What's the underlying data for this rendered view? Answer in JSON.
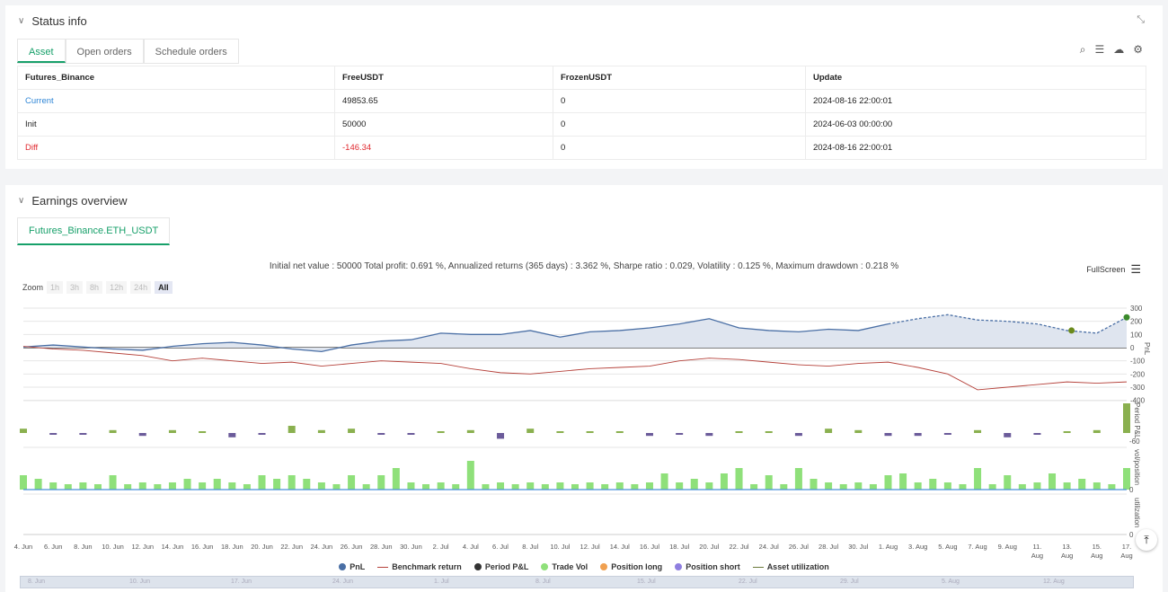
{
  "status": {
    "title": "Status info",
    "tabs": [
      "Asset",
      "Open orders",
      "Schedule orders"
    ],
    "table": {
      "headers": [
        "Futures_Binance",
        "FreeUSDT",
        "FrozenUSDT",
        "Update"
      ],
      "rows": [
        [
          "Current",
          "49853.65",
          "0",
          "2024-08-16 22:00:01"
        ],
        [
          "Init",
          "50000",
          "0",
          "2024-06-03 00:00:00"
        ],
        [
          "Diff",
          "-146.34",
          "0",
          "2024-08-16 22:00:01"
        ]
      ]
    }
  },
  "earnings": {
    "title": "Earnings overview",
    "tab": "Futures_Binance.ETH_USDT",
    "summary": "Initial net value : 50000 Total profit: 0.691 %, Annualized returns (365 days) : 3.362 %, Sharpe ratio : 0.029, Volatility : 0.125 %, Maximum drawdown : 0.218 %",
    "fullscreen": "FullScreen",
    "zoom_label": "Zoom",
    "zoom_options": [
      "1h",
      "3h",
      "8h",
      "12h",
      "24h",
      "All"
    ],
    "legend": [
      "PnL",
      "Benchmark return",
      "Period P&L",
      "Trade Vol",
      "Position long",
      "Position short",
      "Asset utilization"
    ],
    "navigator_labels": [
      "8. Jun",
      "10. Jun",
      "17. Jun",
      "24. Jun",
      "1. Jul",
      "8. Jul",
      "15. Jul",
      "22. Jul",
      "29. Jul",
      "5. Aug",
      "12. Aug"
    ]
  },
  "colors": {
    "pnl": "#4a6fa5",
    "benchmark": "#b5413a",
    "period_pos": "#8ab04f",
    "period_neg": "#6b5b9a",
    "vol": "#8fe07a",
    "accent": "#17a06a"
  },
  "chart_data": {
    "type": "line",
    "x": [
      "4. Jun",
      "6. Jun",
      "8. Jun",
      "10. Jun",
      "12. Jun",
      "14. Jun",
      "16. Jun",
      "18. Jun",
      "20. Jun",
      "22. Jun",
      "24. Jun",
      "26. Jun",
      "28. Jun",
      "30. Jun",
      "2. Jul",
      "4. Jul",
      "6. Jul",
      "8. Jul",
      "10. Jul",
      "12. Jul",
      "14. Jul",
      "16. Jul",
      "18. Jul",
      "20. Jul",
      "22. Jul",
      "24. Jul",
      "26. Jul",
      "28. Jul",
      "30. Jul",
      "1. Aug",
      "3. Aug",
      "5. Aug",
      "7. Aug",
      "9. Aug",
      "11. Aug",
      "13. Aug",
      "15. Aug",
      "17. Aug"
    ],
    "series": [
      {
        "name": "PnL",
        "values": [
          5,
          20,
          5,
          -10,
          -20,
          10,
          30,
          40,
          20,
          -10,
          -30,
          20,
          50,
          60,
          110,
          100,
          100,
          130,
          80,
          120,
          130,
          150,
          180,
          220,
          150,
          130,
          120,
          140,
          130,
          180,
          220,
          250,
          210,
          200,
          180,
          130,
          110,
          230
        ]
      },
      {
        "name": "Benchmark return",
        "values": [
          10,
          -10,
          -20,
          -40,
          -60,
          -100,
          -80,
          -100,
          -120,
          -110,
          -140,
          -120,
          -100,
          -110,
          -120,
          -160,
          -190,
          -200,
          -180,
          -160,
          -150,
          -140,
          -100,
          -80,
          -90,
          -110,
          -130,
          -140,
          -120,
          -110,
          -150,
          -200,
          -320,
          -300,
          -280,
          -260,
          -270,
          -260
        ]
      },
      {
        "name": "Period P&L",
        "values": [
          3,
          -1,
          -1,
          2,
          -2,
          2,
          0,
          -3,
          -1,
          5,
          2,
          3,
          -1,
          -1,
          0,
          2,
          -4,
          3,
          0,
          1,
          1,
          -2,
          -1,
          -2,
          0,
          1,
          -2,
          3,
          2,
          -2,
          -2,
          -1,
          2,
          -3,
          -1,
          1,
          2,
          35
        ]
      },
      {
        "name": "Trade Vol",
        "values": [
          2,
          1,
          1,
          2,
          1,
          1,
          1,
          1,
          2,
          2,
          1,
          2,
          2,
          1,
          1,
          4,
          1,
          1,
          1,
          1,
          1,
          1,
          1,
          1,
          3,
          2,
          3,
          1,
          1,
          2,
          1,
          1,
          3,
          2,
          1,
          1,
          1,
          3
        ]
      }
    ],
    "y_axes": {
      "pnl": {
        "ticks": [
          "300",
          "200",
          "100",
          "0",
          "-100",
          "-200",
          "-300",
          "-400"
        ],
        "label": "PnL"
      },
      "period": {
        "ticks": [
          "-60"
        ],
        "label": "Period P&L"
      },
      "vol": {
        "ticks": [
          "0"
        ],
        "label": "vol/position"
      },
      "util": {
        "ticks": [
          "0"
        ],
        "label": "utilization"
      }
    }
  }
}
